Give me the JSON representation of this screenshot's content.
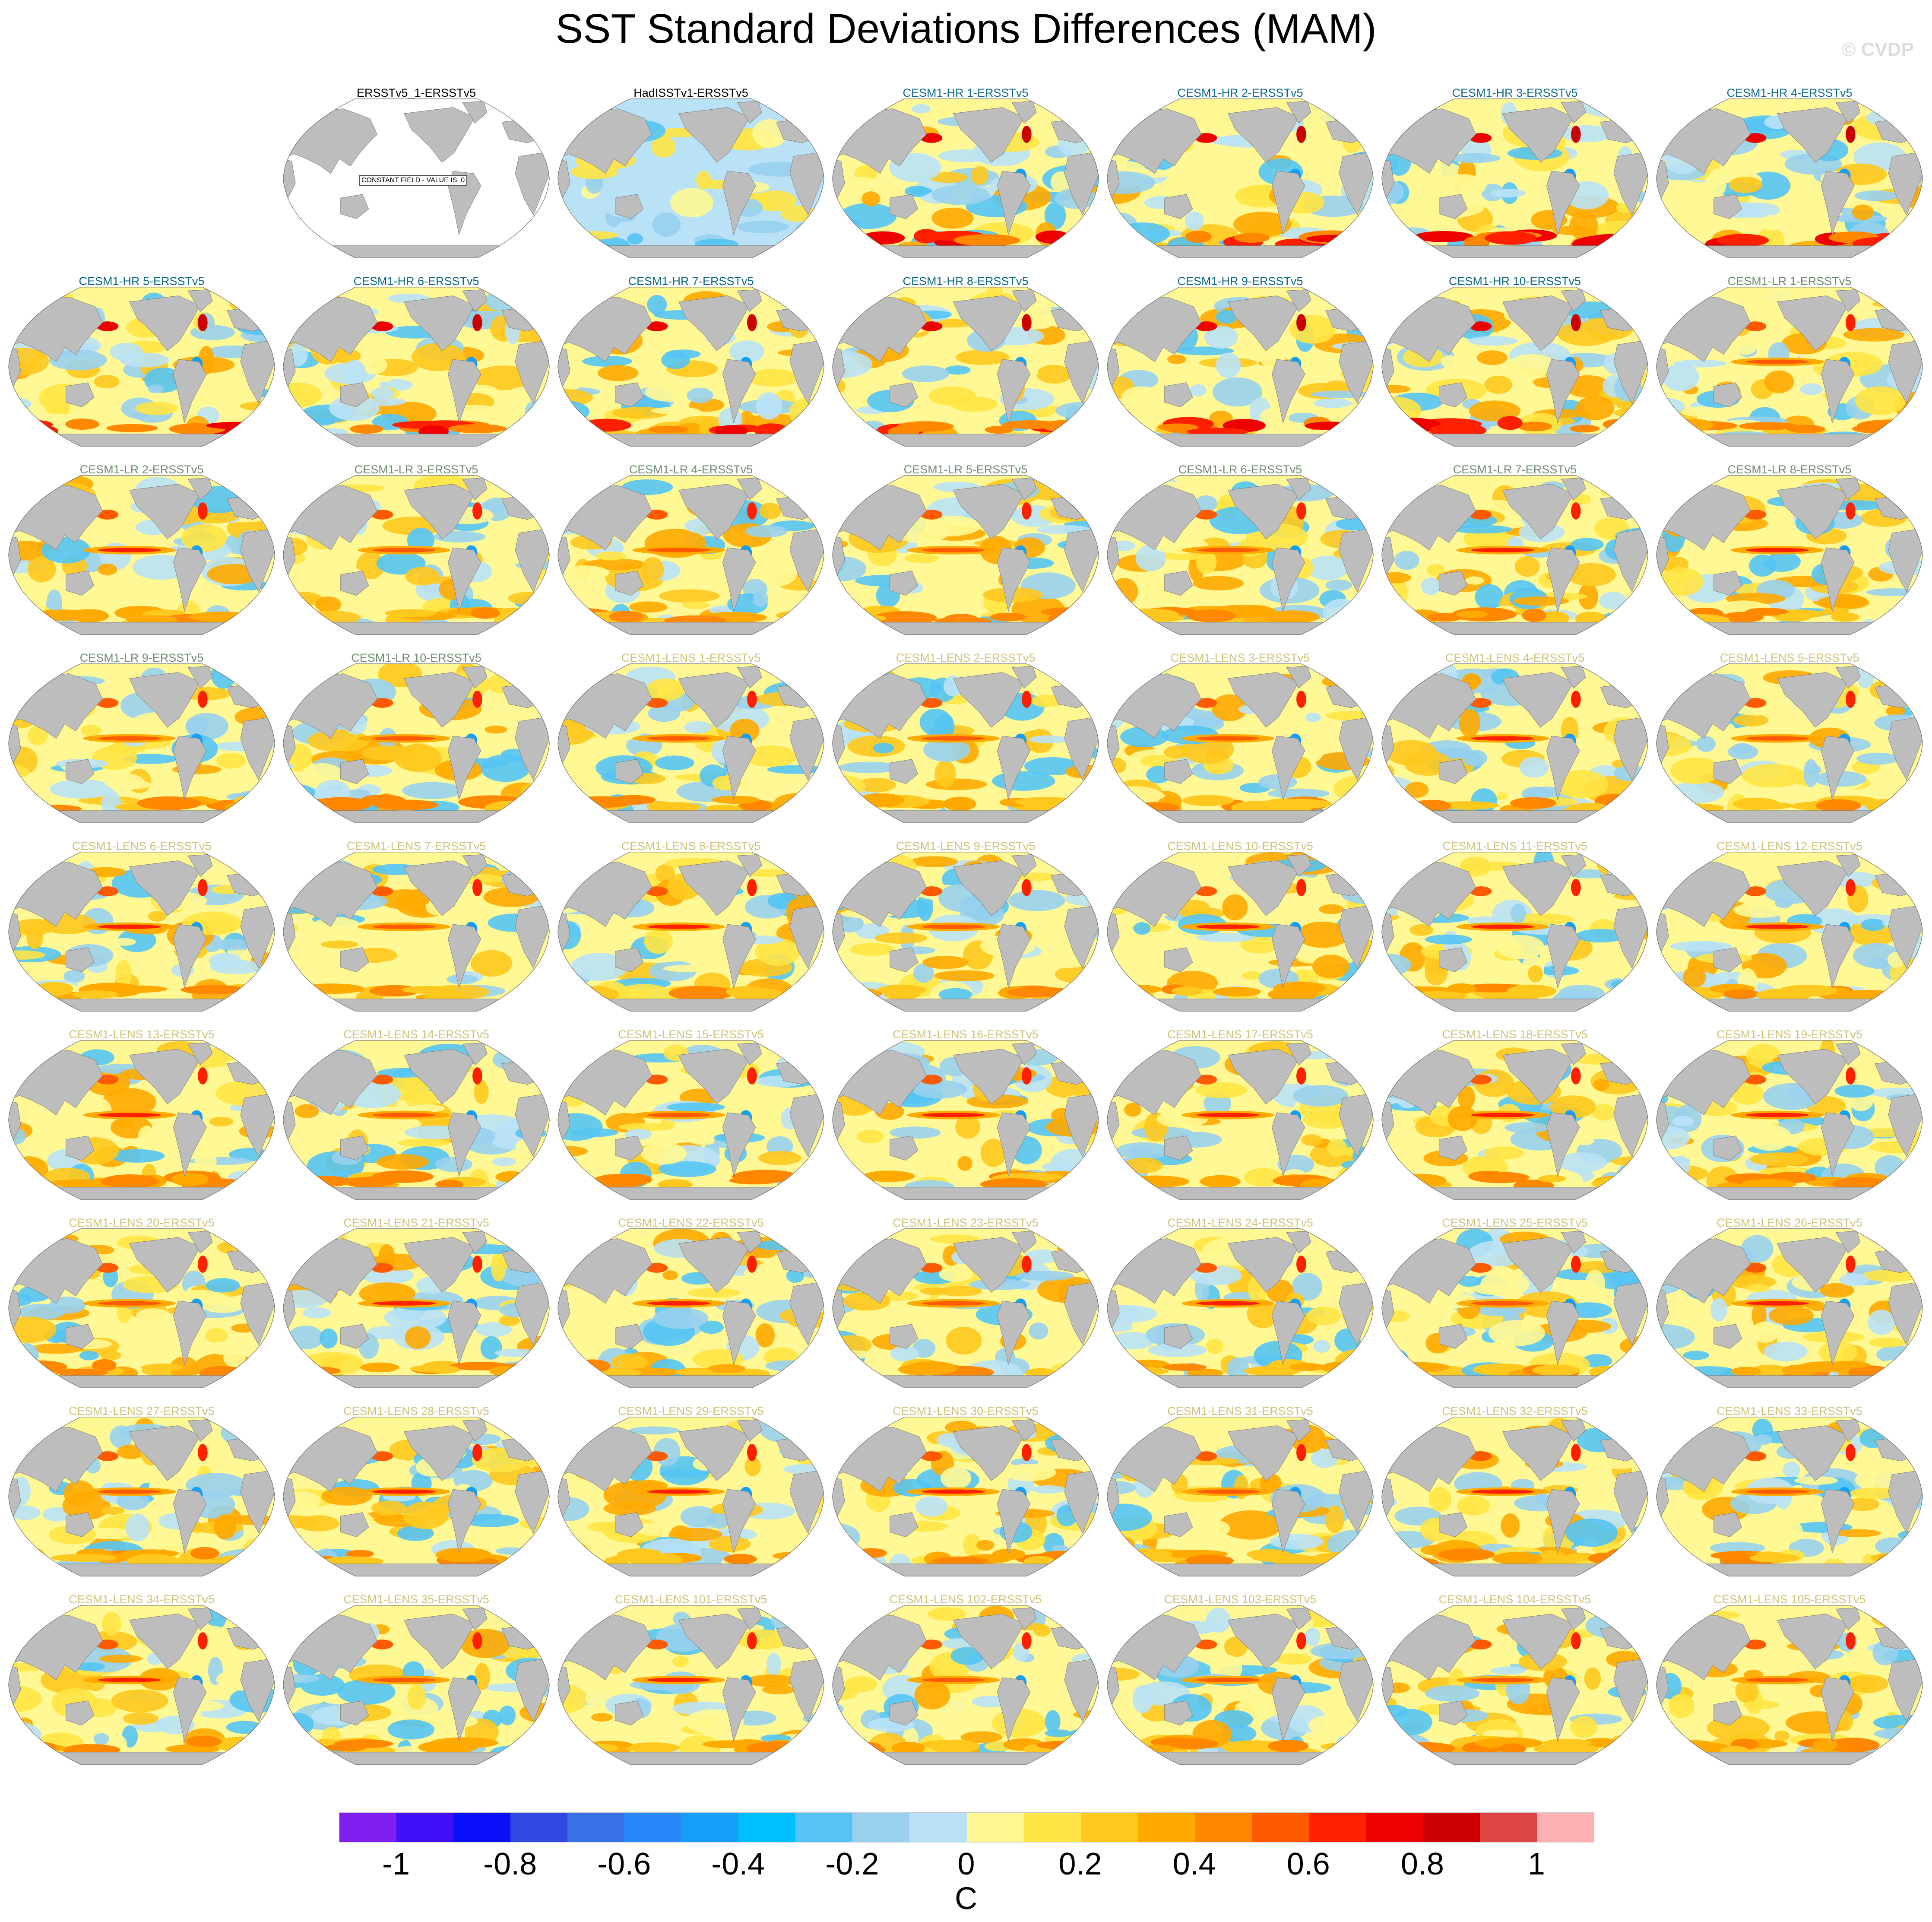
{
  "title": "SST Standard Deviations Differences (MAM)",
  "watermark": "© CVDP",
  "group_colors": {
    "obs": "#000000",
    "HR": "#0f6a86",
    "LR": "#6d8d6b",
    "LENS": "#cfc27a"
  },
  "constant_field_note": "CONSTANT FIELD - VALUE IS .0",
  "panels": [
    {
      "title": "ERSSTv5_1-ERSSTv5",
      "group": "obs"
    },
    {
      "title": "HadISSTv1-ERSSTv5",
      "group": "obs"
    },
    {
      "title": "CESM1-HR 1-ERSSTv5",
      "group": "HR"
    },
    {
      "title": "CESM1-HR 2-ERSSTv5",
      "group": "HR"
    },
    {
      "title": "CESM1-HR 3-ERSSTv5",
      "group": "HR"
    },
    {
      "title": "CESM1-HR 4-ERSSTv5",
      "group": "HR"
    },
    {
      "title": "CESM1-HR 5-ERSSTv5",
      "group": "HR"
    },
    {
      "title": "CESM1-HR 6-ERSSTv5",
      "group": "HR"
    },
    {
      "title": "CESM1-HR 7-ERSSTv5",
      "group": "HR"
    },
    {
      "title": "CESM1-HR 8-ERSSTv5",
      "group": "HR"
    },
    {
      "title": "CESM1-HR 9-ERSSTv5",
      "group": "HR"
    },
    {
      "title": "CESM1-HR 10-ERSSTv5",
      "group": "HR"
    },
    {
      "title": "CESM1-LR 1-ERSSTv5",
      "group": "LR"
    },
    {
      "title": "CESM1-LR 2-ERSSTv5",
      "group": "LR"
    },
    {
      "title": "CESM1-LR 3-ERSSTv5",
      "group": "LR"
    },
    {
      "title": "CESM1-LR 4-ERSSTv5",
      "group": "LR"
    },
    {
      "title": "CESM1-LR 5-ERSSTv5",
      "group": "LR"
    },
    {
      "title": "CESM1-LR 6-ERSSTv5",
      "group": "LR"
    },
    {
      "title": "CESM1-LR 7-ERSSTv5",
      "group": "LR"
    },
    {
      "title": "CESM1-LR 8-ERSSTv5",
      "group": "LR"
    },
    {
      "title": "CESM1-LR 9-ERSSTv5",
      "group": "LR"
    },
    {
      "title": "CESM1-LR 10-ERSSTv5",
      "group": "LR"
    },
    {
      "title": "CESM1-LENS 1-ERSSTv5",
      "group": "LENS"
    },
    {
      "title": "CESM1-LENS 2-ERSSTv5",
      "group": "LENS"
    },
    {
      "title": "CESM1-LENS 3-ERSSTv5",
      "group": "LENS"
    },
    {
      "title": "CESM1-LENS 4-ERSSTv5",
      "group": "LENS"
    },
    {
      "title": "CESM1-LENS 5-ERSSTv5",
      "group": "LENS"
    },
    {
      "title": "CESM1-LENS 6-ERSSTv5",
      "group": "LENS"
    },
    {
      "title": "CESM1-LENS 7-ERSSTv5",
      "group": "LENS"
    },
    {
      "title": "CESM1-LENS 8-ERSSTv5",
      "group": "LENS"
    },
    {
      "title": "CESM1-LENS 9-ERSSTv5",
      "group": "LENS"
    },
    {
      "title": "CESM1-LENS 10-ERSSTv5",
      "group": "LENS"
    },
    {
      "title": "CESM1-LENS 11-ERSSTv5",
      "group": "LENS"
    },
    {
      "title": "CESM1-LENS 12-ERSSTv5",
      "group": "LENS"
    },
    {
      "title": "CESM1-LENS 13-ERSSTv5",
      "group": "LENS"
    },
    {
      "title": "CESM1-LENS 14-ERSSTv5",
      "group": "LENS"
    },
    {
      "title": "CESM1-LENS 15-ERSSTv5",
      "group": "LENS"
    },
    {
      "title": "CESM1-LENS 16-ERSSTv5",
      "group": "LENS"
    },
    {
      "title": "CESM1-LENS 17-ERSSTv5",
      "group": "LENS"
    },
    {
      "title": "CESM1-LENS 18-ERSSTv5",
      "group": "LENS"
    },
    {
      "title": "CESM1-LENS 19-ERSSTv5",
      "group": "LENS"
    },
    {
      "title": "CESM1-LENS 20-ERSSTv5",
      "group": "LENS"
    },
    {
      "title": "CESM1-LENS 21-ERSSTv5",
      "group": "LENS"
    },
    {
      "title": "CESM1-LENS 22-ERSSTv5",
      "group": "LENS"
    },
    {
      "title": "CESM1-LENS 23-ERSSTv5",
      "group": "LENS"
    },
    {
      "title": "CESM1-LENS 24-ERSSTv5",
      "group": "LENS"
    },
    {
      "title": "CESM1-LENS 25-ERSSTv5",
      "group": "LENS"
    },
    {
      "title": "CESM1-LENS 26-ERSSTv5",
      "group": "LENS"
    },
    {
      "title": "CESM1-LENS 27-ERSSTv5",
      "group": "LENS"
    },
    {
      "title": "CESM1-LENS 28-ERSSTv5",
      "group": "LENS"
    },
    {
      "title": "CESM1-LENS 29-ERSSTv5",
      "group": "LENS"
    },
    {
      "title": "CESM1-LENS 30-ERSSTv5",
      "group": "LENS"
    },
    {
      "title": "CESM1-LENS 31-ERSSTv5",
      "group": "LENS"
    },
    {
      "title": "CESM1-LENS 32-ERSSTv5",
      "group": "LENS"
    },
    {
      "title": "CESM1-LENS 33-ERSSTv5",
      "group": "LENS"
    },
    {
      "title": "CESM1-LENS 34-ERSSTv5",
      "group": "LENS"
    },
    {
      "title": "CESM1-LENS 35-ERSSTv5",
      "group": "LENS"
    },
    {
      "title": "CESM1-LENS 101-ERSSTv5",
      "group": "LENS"
    },
    {
      "title": "CESM1-LENS 102-ERSSTv5",
      "group": "LENS"
    },
    {
      "title": "CESM1-LENS 103-ERSSTv5",
      "group": "LENS"
    },
    {
      "title": "CESM1-LENS 104-ERSSTv5",
      "group": "LENS"
    },
    {
      "title": "CESM1-LENS 105-ERSSTv5",
      "group": "LENS"
    }
  ],
  "chart_data": {
    "type": "heatmap",
    "title": "SST Standard Deviations Differences (MAM)",
    "projection": "Robinson, Pacific-centered",
    "colorbar": {
      "unit": "C",
      "range": [
        -1.1,
        1.1
      ],
      "step": 0.1,
      "ticks": [
        "-1",
        "-0.8",
        "-0.6",
        "-0.4",
        "-0.2",
        "0",
        "0.2",
        "0.4",
        "0.6",
        "0.8",
        "1"
      ],
      "colors": [
        "#8020f0",
        "#4010fa",
        "#0a10fa",
        "#3048e0",
        "#3a70e6",
        "#2888fa",
        "#14a0fa",
        "#00bffe",
        "#54c4f4",
        "#98d0ee",
        "#bae2f6",
        "#fff894",
        "#ffe444",
        "#ffc81e",
        "#ffaa00",
        "#ff8800",
        "#ff5a00",
        "#ff2000",
        "#ee0000",
        "#cc0000",
        "#dd4444",
        "#ffb0b0"
      ]
    }
  }
}
